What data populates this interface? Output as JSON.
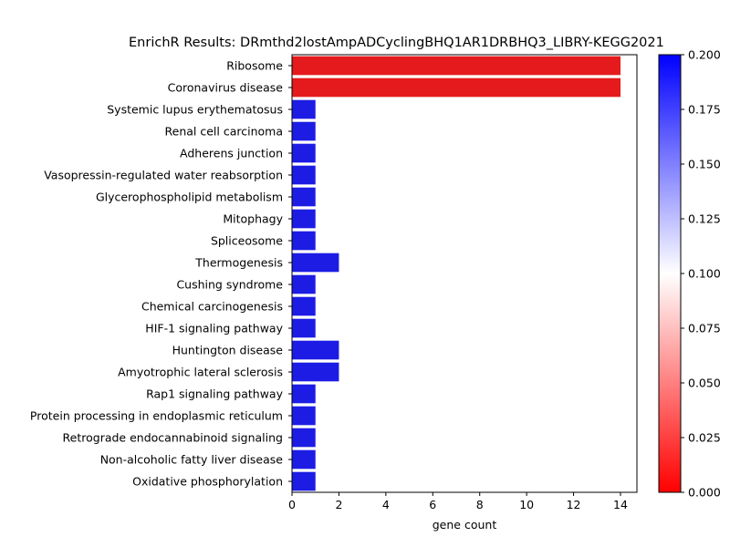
{
  "chart_data": {
    "type": "bar",
    "orientation": "horizontal",
    "title": "EnrichR Results: DRmthd2lostAmpADCyclingBHQ1AR1DRBHQ3_LIBRY-KEGG2021",
    "xlabel": "gene count",
    "ylabel": "",
    "xlim": [
      0,
      14.7
    ],
    "xticks": [
      "0",
      "2",
      "4",
      "6",
      "8",
      "10",
      "12",
      "14"
    ],
    "categories": [
      "Ribosome",
      "Coronavirus disease",
      "Systemic lupus erythematosus",
      "Renal cell carcinoma",
      "Adherens junction",
      "Vasopressin-regulated water reabsorption",
      "Glycerophospholipid metabolism",
      "Mitophagy",
      "Spliceosome",
      "Thermogenesis",
      "Cushing syndrome",
      "Chemical carcinogenesis",
      "HIF-1 signaling pathway",
      "Huntington disease",
      "Amyotrophic lateral sclerosis",
      "Rap1 signaling pathway",
      "Protein processing in endoplasmic reticulum",
      "Retrograde endocannabinoid signaling",
      "Non-alcoholic fatty liver disease",
      "Oxidative phosphorylation"
    ],
    "values": [
      14,
      14,
      1,
      1,
      1,
      1,
      1,
      1,
      1,
      2,
      1,
      1,
      1,
      2,
      2,
      1,
      1,
      1,
      1,
      1
    ],
    "bar_colors": [
      "#e41a1c",
      "#e41a1c",
      "#1c1ce4",
      "#1c1ce4",
      "#1c1ce4",
      "#1c1ce4",
      "#1c1ce4",
      "#1c1ce4",
      "#1c1ce4",
      "#1c1ce4",
      "#1c1ce4",
      "#1c1ce4",
      "#1c1ce4",
      "#1c1ce4",
      "#1c1ce4",
      "#1c1ce4",
      "#1c1ce4",
      "#1c1ce4",
      "#1c1ce4",
      "#1c1ce4"
    ],
    "colorbar": {
      "range": [
        0,
        0.2
      ],
      "ticks": [
        "0.000",
        "0.025",
        "0.050",
        "0.075",
        "0.100",
        "0.125",
        "0.150",
        "0.175",
        "0.200"
      ],
      "colors": [
        "#ff0000",
        "#ffffff",
        "#0000ff"
      ]
    },
    "grid": false
  }
}
